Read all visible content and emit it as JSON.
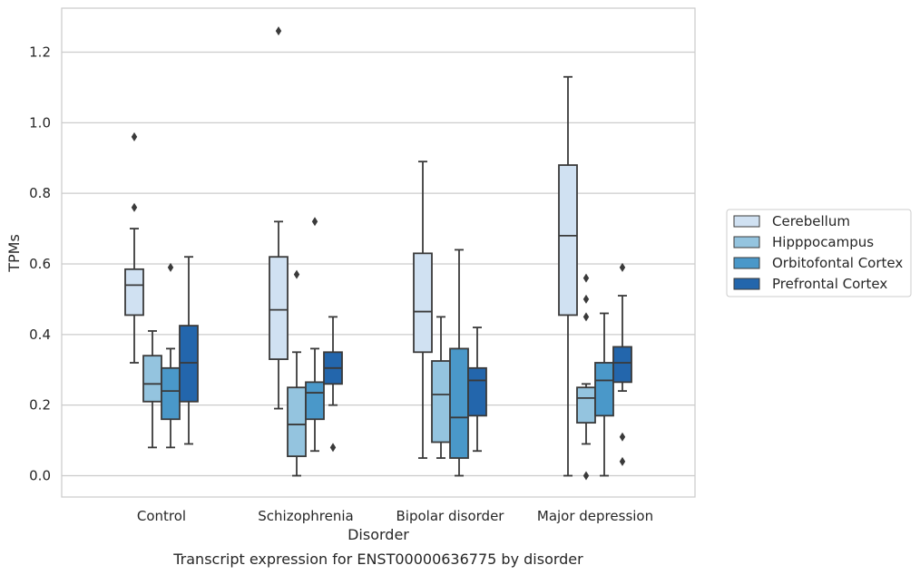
{
  "caption": "Transcript expression for ENST00000636775 by disorder",
  "chart_data": {
    "type": "box",
    "title": "",
    "xlabel": "Disorder",
    "ylabel": "TPMs",
    "ylim": [
      -0.06,
      1.32
    ],
    "yticks": [
      "0.0",
      "0.2",
      "0.4",
      "0.6",
      "0.8",
      "1.0",
      "1.2"
    ],
    "ytick_values": [
      0.0,
      0.2,
      0.4,
      0.6,
      0.8,
      1.0,
      1.2
    ],
    "grid": "horizontal",
    "legend_position": "right",
    "categories": [
      "Control",
      "Schizophrenia",
      "Bipolar disorder",
      "Major depression"
    ],
    "series": [
      {
        "name": "Cerebellum",
        "color": "#d0e1f2",
        "boxes": [
          {
            "whisker_low": 0.32,
            "q1": 0.455,
            "median": 0.54,
            "q3": 0.585,
            "whisker_high": 0.7,
            "outliers": [
              0.76,
              0.96
            ]
          },
          {
            "whisker_low": 0.19,
            "q1": 0.33,
            "median": 0.47,
            "q3": 0.62,
            "whisker_high": 0.72,
            "outliers": [
              1.26
            ]
          },
          {
            "whisker_low": 0.05,
            "q1": 0.35,
            "median": 0.465,
            "q3": 0.63,
            "whisker_high": 0.89,
            "outliers": []
          },
          {
            "whisker_low": 0.0,
            "q1": 0.455,
            "median": 0.68,
            "q3": 0.88,
            "whisker_high": 1.13,
            "outliers": []
          }
        ]
      },
      {
        "name": "Hipppocampus",
        "color": "#94c4df",
        "boxes": [
          {
            "whisker_low": 0.08,
            "q1": 0.21,
            "median": 0.26,
            "q3": 0.34,
            "whisker_high": 0.41,
            "outliers": []
          },
          {
            "whisker_low": 0.0,
            "q1": 0.055,
            "median": 0.145,
            "q3": 0.25,
            "whisker_high": 0.35,
            "outliers": [
              0.57
            ]
          },
          {
            "whisker_low": 0.05,
            "q1": 0.095,
            "median": 0.23,
            "q3": 0.325,
            "whisker_high": 0.45,
            "outliers": []
          },
          {
            "whisker_low": 0.09,
            "q1": 0.15,
            "median": 0.22,
            "q3": 0.25,
            "whisker_high": 0.26,
            "outliers": [
              0.0,
              0.45,
              0.5,
              0.56
            ]
          }
        ]
      },
      {
        "name": "Orbitofontal Cortex",
        "color": "#4a98c9",
        "boxes": [
          {
            "whisker_low": 0.08,
            "q1": 0.16,
            "median": 0.24,
            "q3": 0.305,
            "whisker_high": 0.36,
            "outliers": [
              0.59
            ]
          },
          {
            "whisker_low": 0.07,
            "q1": 0.16,
            "median": 0.235,
            "q3": 0.265,
            "whisker_high": 0.36,
            "outliers": [
              0.72
            ]
          },
          {
            "whisker_low": 0.0,
            "q1": 0.05,
            "median": 0.165,
            "q3": 0.36,
            "whisker_high": 0.64,
            "outliers": []
          },
          {
            "whisker_low": 0.0,
            "q1": 0.17,
            "median": 0.27,
            "q3": 0.32,
            "whisker_high": 0.46,
            "outliers": []
          }
        ]
      },
      {
        "name": "Prefrontal Cortex",
        "color": "#2366ac",
        "boxes": [
          {
            "whisker_low": 0.09,
            "q1": 0.21,
            "median": 0.32,
            "q3": 0.425,
            "whisker_high": 0.62,
            "outliers": []
          },
          {
            "whisker_low": 0.2,
            "q1": 0.26,
            "median": 0.305,
            "q3": 0.35,
            "whisker_high": 0.45,
            "outliers": [
              0.08
            ]
          },
          {
            "whisker_low": 0.07,
            "q1": 0.17,
            "median": 0.27,
            "q3": 0.305,
            "whisker_high": 0.42,
            "outliers": []
          },
          {
            "whisker_low": 0.24,
            "q1": 0.265,
            "median": 0.32,
            "q3": 0.365,
            "whisker_high": 0.51,
            "outliers": [
              0.04,
              0.11,
              0.59
            ]
          }
        ]
      }
    ]
  }
}
